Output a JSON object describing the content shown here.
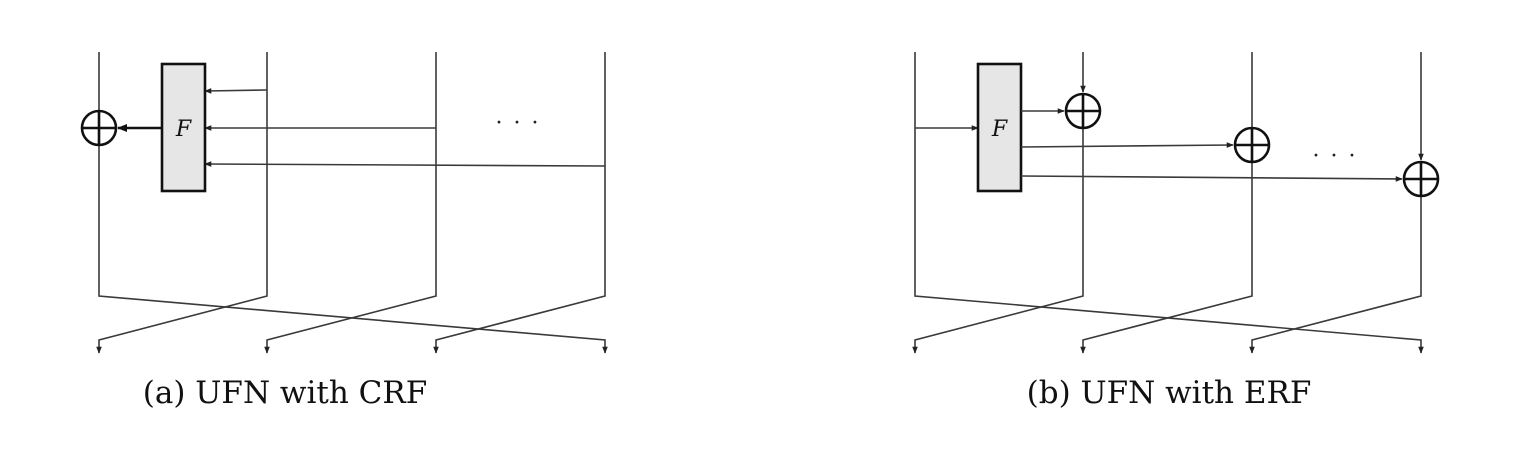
{
  "diagram_a": {
    "function_label": "F",
    "ellipsis": "· · ·",
    "caption": "(a) UFN with CRF"
  },
  "diagram_b": {
    "function_label": "F",
    "ellipsis": "· · ·",
    "caption": "(b) UFN with ERF"
  },
  "colors": {
    "box_fill": "#e6e6e6",
    "stroke": "#111111"
  }
}
